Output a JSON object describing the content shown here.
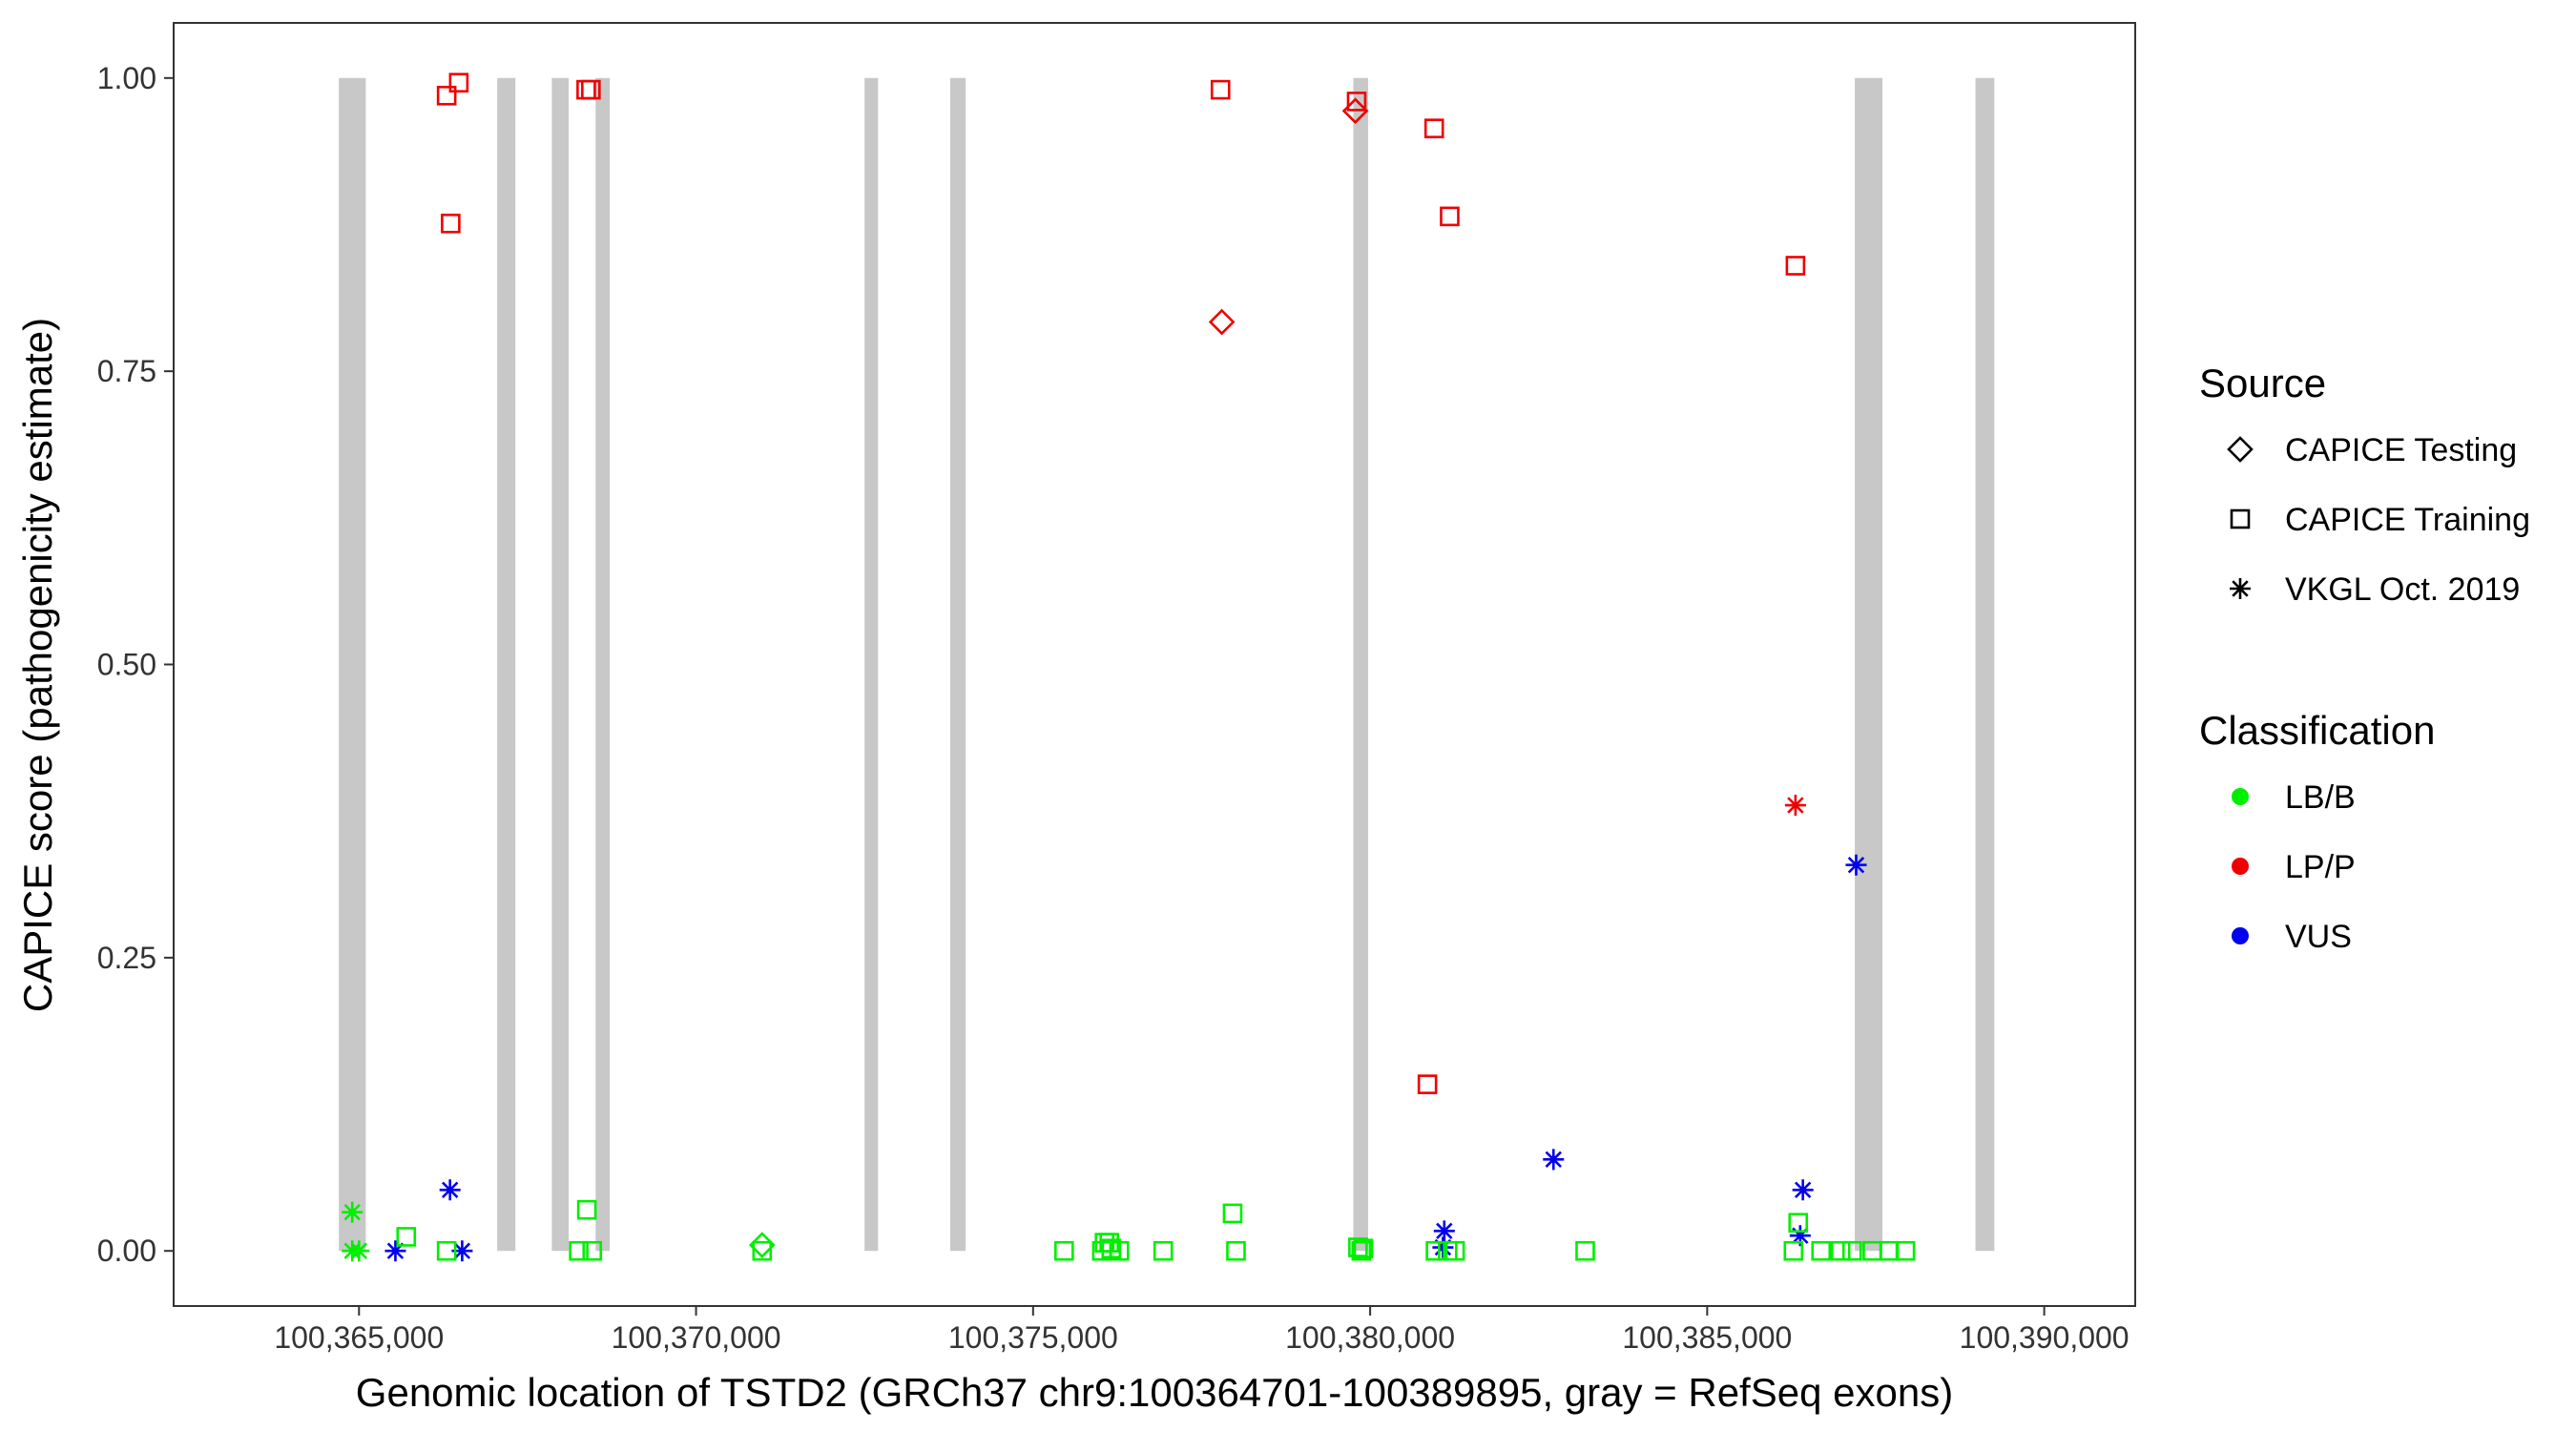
{
  "chart_data": {
    "type": "scatter",
    "xlabel": "Genomic location of TSTD2 (GRCh37 chr9:100364701-100389895, gray = RefSeq exons)",
    "ylabel": "CAPICE score (pathogenicity estimate)",
    "xlim": [
      100362250,
      100391350
    ],
    "ylim": [
      -0.047,
      1.047
    ],
    "x_ticks": [
      100365000,
      100370000,
      100375000,
      100380000,
      100385000,
      100390000
    ],
    "x_tick_labels": [
      "100,365,000",
      "100,370,000",
      "100,375,000",
      "100,380,000",
      "100,385,000",
      "100,390,000"
    ],
    "y_ticks": [
      0,
      0.25,
      0.5,
      0.75,
      1
    ],
    "y_tick_labels": [
      "0.00",
      "0.25",
      "0.50",
      "0.75",
      "1.00"
    ],
    "grid": false,
    "exons": [
      {
        "start": 100364701,
        "end": 100365100
      },
      {
        "start": 100367050,
        "end": 100367320
      },
      {
        "start": 100367860,
        "end": 100368110
      },
      {
        "start": 100368510,
        "end": 100368720
      },
      {
        "start": 100372500,
        "end": 100372700
      },
      {
        "start": 100373770,
        "end": 100374000
      },
      {
        "start": 100379750,
        "end": 100379970
      },
      {
        "start": 100387190,
        "end": 100387600
      },
      {
        "start": 100388980,
        "end": 100389260
      }
    ],
    "colors": {
      "LB/B": "#00ee00",
      "LP/P": "#ee0000",
      "VUS": "#0000ee",
      "exon": "#c8c8c8"
    },
    "legend": {
      "position": "right",
      "source_title": "Source",
      "source_items": [
        {
          "label": "CAPICE Testing",
          "shape": "diamond"
        },
        {
          "label": "CAPICE Training",
          "shape": "square"
        },
        {
          "label": "VKGL Oct. 2019",
          "shape": "asterisk"
        }
      ],
      "class_title": "Classification",
      "class_items": [
        {
          "label": "LB/B",
          "color": "#00ee00"
        },
        {
          "label": "LP/P",
          "color": "#ee0000"
        },
        {
          "label": "VUS",
          "color": "#0000ee"
        }
      ]
    },
    "points": [
      {
        "x": 100366300,
        "y": 0.985,
        "source": "CAPICE Training",
        "cls": "LP/P"
      },
      {
        "x": 100366480,
        "y": 0.996,
        "source": "CAPICE Training",
        "cls": "LP/P"
      },
      {
        "x": 100366360,
        "y": 0.876,
        "source": "CAPICE Training",
        "cls": "LP/P"
      },
      {
        "x": 100368370,
        "y": 0.99,
        "source": "CAPICE Training",
        "cls": "LP/P"
      },
      {
        "x": 100368440,
        "y": 0.99,
        "source": "CAPICE Training",
        "cls": "LP/P"
      },
      {
        "x": 100377780,
        "y": 0.99,
        "source": "CAPICE Training",
        "cls": "LP/P"
      },
      {
        "x": 100379800,
        "y": 0.98,
        "source": "CAPICE Training",
        "cls": "LP/P"
      },
      {
        "x": 100379780,
        "y": 0.972,
        "source": "CAPICE Testing",
        "cls": "LP/P"
      },
      {
        "x": 100380950,
        "y": 0.957,
        "source": "CAPICE Training",
        "cls": "LP/P"
      },
      {
        "x": 100381180,
        "y": 0.882,
        "source": "CAPICE Training",
        "cls": "LP/P"
      },
      {
        "x": 100377800,
        "y": 0.792,
        "source": "CAPICE Testing",
        "cls": "LP/P"
      },
      {
        "x": 100386310,
        "y": 0.84,
        "source": "CAPICE Training",
        "cls": "LP/P"
      },
      {
        "x": 100380850,
        "y": 0.142,
        "source": "CAPICE Training",
        "cls": "LP/P"
      },
      {
        "x": 100386310,
        "y": 0.38,
        "source": "VKGL Oct. 2019",
        "cls": "LP/P"
      },
      {
        "x": 100387210,
        "y": 0.329,
        "source": "VKGL Oct. 2019",
        "cls": "VUS"
      },
      {
        "x": 100382720,
        "y": 0.078,
        "source": "VKGL Oct. 2019",
        "cls": "VUS"
      },
      {
        "x": 100386420,
        "y": 0.052,
        "source": "VKGL Oct. 2019",
        "cls": "VUS"
      },
      {
        "x": 100386380,
        "y": 0.013,
        "source": "VKGL Oct. 2019",
        "cls": "VUS"
      },
      {
        "x": 100381100,
        "y": 0.017,
        "source": "VKGL Oct. 2019",
        "cls": "VUS"
      },
      {
        "x": 100381080,
        "y": 0.003,
        "source": "VKGL Oct. 2019",
        "cls": "VUS"
      },
      {
        "x": 100366350,
        "y": 0.052,
        "source": "VKGL Oct. 2019",
        "cls": "VUS"
      },
      {
        "x": 100365540,
        "y": 0.0,
        "source": "VKGL Oct. 2019",
        "cls": "VUS"
      },
      {
        "x": 100366530,
        "y": 0.0,
        "source": "VKGL Oct. 2019",
        "cls": "VUS"
      },
      {
        "x": 100364900,
        "y": 0.033,
        "source": "VKGL Oct. 2019",
        "cls": "LB/B"
      },
      {
        "x": 100364900,
        "y": 0.0,
        "source": "VKGL Oct. 2019",
        "cls": "LB/B"
      },
      {
        "x": 100365000,
        "y": 0.0,
        "source": "VKGL Oct. 2019",
        "cls": "LB/B"
      },
      {
        "x": 100365700,
        "y": 0.012,
        "source": "CAPICE Training",
        "cls": "LB/B"
      },
      {
        "x": 100366300,
        "y": 0.0,
        "source": "CAPICE Training",
        "cls": "LB/B"
      },
      {
        "x": 100368260,
        "y": 0.0,
        "source": "CAPICE Training",
        "cls": "LB/B"
      },
      {
        "x": 100368380,
        "y": 0.035,
        "source": "CAPICE Training",
        "cls": "LB/B"
      },
      {
        "x": 100368460,
        "y": 0.0,
        "source": "CAPICE Training",
        "cls": "LB/B"
      },
      {
        "x": 100370980,
        "y": 0.005,
        "source": "CAPICE Testing",
        "cls": "LB/B"
      },
      {
        "x": 100370980,
        "y": 0.0,
        "source": "CAPICE Training",
        "cls": "LB/B"
      },
      {
        "x": 100375460,
        "y": 0.0,
        "source": "CAPICE Training",
        "cls": "LB/B"
      },
      {
        "x": 100376020,
        "y": 0.0,
        "source": "CAPICE Training",
        "cls": "LB/B"
      },
      {
        "x": 100376060,
        "y": 0.007,
        "source": "CAPICE Training",
        "cls": "LB/B"
      },
      {
        "x": 100376130,
        "y": 0.007,
        "source": "CAPICE Training",
        "cls": "LB/B"
      },
      {
        "x": 100376160,
        "y": 0.002,
        "source": "CAPICE Training",
        "cls": "LB/B"
      },
      {
        "x": 100376280,
        "y": 0.0,
        "source": "CAPICE Training",
        "cls": "LB/B"
      },
      {
        "x": 100376930,
        "y": 0.0,
        "source": "CAPICE Training",
        "cls": "LB/B"
      },
      {
        "x": 100377960,
        "y": 0.032,
        "source": "CAPICE Training",
        "cls": "LB/B"
      },
      {
        "x": 100378010,
        "y": 0.0,
        "source": "CAPICE Training",
        "cls": "LB/B"
      },
      {
        "x": 100379820,
        "y": 0.003,
        "source": "CAPICE Training",
        "cls": "LB/B"
      },
      {
        "x": 100379870,
        "y": 0.0,
        "source": "CAPICE Training",
        "cls": "LB/B"
      },
      {
        "x": 100379900,
        "y": 0.002,
        "source": "CAPICE Training",
        "cls": "LB/B"
      },
      {
        "x": 100380970,
        "y": 0.0,
        "source": "CAPICE Training",
        "cls": "LB/B"
      },
      {
        "x": 100381150,
        "y": 0.0,
        "source": "CAPICE Training",
        "cls": "LB/B"
      },
      {
        "x": 100381260,
        "y": 0.0,
        "source": "CAPICE Training",
        "cls": "LB/B"
      },
      {
        "x": 100383190,
        "y": 0.0,
        "source": "CAPICE Training",
        "cls": "LB/B"
      },
      {
        "x": 100386280,
        "y": 0.0,
        "source": "CAPICE Training",
        "cls": "LB/B"
      },
      {
        "x": 100386350,
        "y": 0.024,
        "source": "CAPICE Training",
        "cls": "LB/B"
      },
      {
        "x": 100386690,
        "y": 0.0,
        "source": "CAPICE Training",
        "cls": "LB/B"
      },
      {
        "x": 100386980,
        "y": 0.0,
        "source": "CAPICE Training",
        "cls": "LB/B"
      },
      {
        "x": 100387150,
        "y": 0.0,
        "source": "CAPICE Training",
        "cls": "LB/B"
      },
      {
        "x": 100387450,
        "y": 0.0,
        "source": "CAPICE Training",
        "cls": "LB/B"
      },
      {
        "x": 100387700,
        "y": 0.0,
        "source": "CAPICE Training",
        "cls": "LB/B"
      },
      {
        "x": 100387940,
        "y": 0.0,
        "source": "CAPICE Training",
        "cls": "LB/B"
      }
    ]
  }
}
